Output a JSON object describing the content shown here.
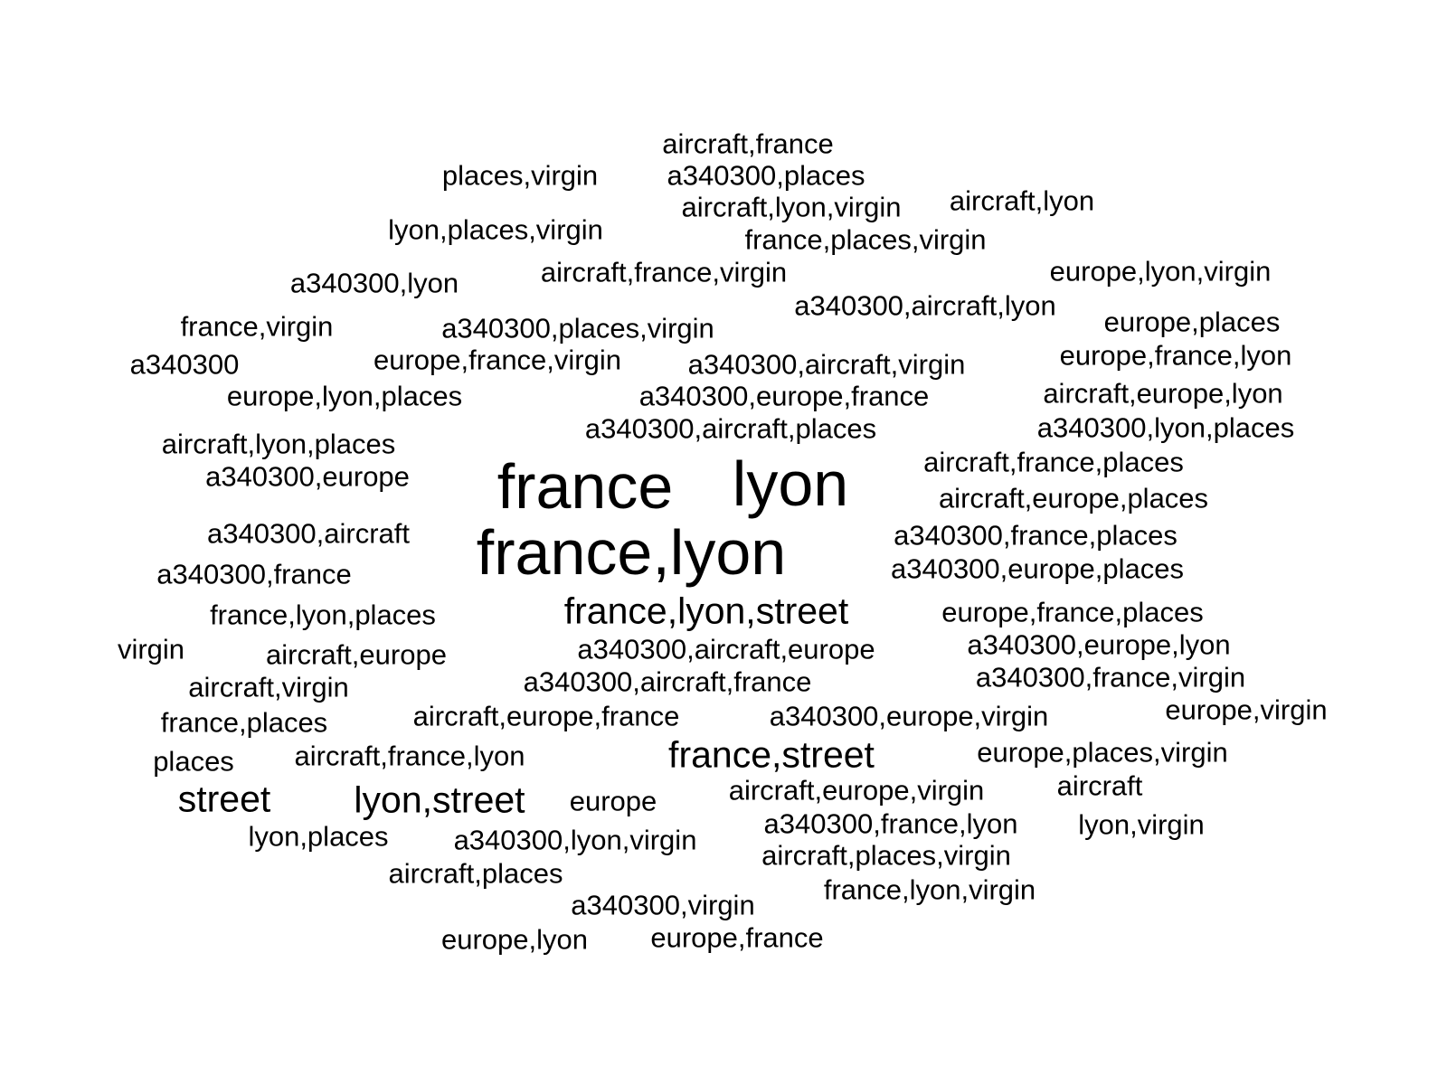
{
  "chart_data": {
    "type": "wordcloud",
    "text_color": "#000000",
    "background": "#ffffff",
    "words": [
      {
        "text": "france",
        "weight": 5
      },
      {
        "text": "lyon",
        "weight": 5
      },
      {
        "text": "france,lyon",
        "weight": 5
      },
      {
        "text": "france,lyon,street",
        "weight": 3
      },
      {
        "text": "france,street",
        "weight": 3
      },
      {
        "text": "street",
        "weight": 3
      },
      {
        "text": "lyon,street",
        "weight": 3
      },
      {
        "text": "aircraft,france",
        "weight": 1
      },
      {
        "text": "places,virgin",
        "weight": 1
      },
      {
        "text": "a340300,places",
        "weight": 1
      },
      {
        "text": "aircraft,lyon,virgin",
        "weight": 1
      },
      {
        "text": "aircraft,lyon",
        "weight": 1
      },
      {
        "text": "lyon,places,virgin",
        "weight": 1
      },
      {
        "text": "france,places,virgin",
        "weight": 1
      },
      {
        "text": "a340300,lyon",
        "weight": 1
      },
      {
        "text": "aircraft,france,virgin",
        "weight": 1
      },
      {
        "text": "europe,lyon,virgin",
        "weight": 1
      },
      {
        "text": "a340300,aircraft,lyon",
        "weight": 1
      },
      {
        "text": "france,virgin",
        "weight": 1
      },
      {
        "text": "a340300,places,virgin",
        "weight": 1
      },
      {
        "text": "europe,places",
        "weight": 1
      },
      {
        "text": "a340300",
        "weight": 1
      },
      {
        "text": "europe,france,virgin",
        "weight": 1
      },
      {
        "text": "a340300,aircraft,virgin",
        "weight": 1
      },
      {
        "text": "europe,france,lyon",
        "weight": 1
      },
      {
        "text": "europe,lyon,places",
        "weight": 1
      },
      {
        "text": "a340300,europe,france",
        "weight": 1
      },
      {
        "text": "aircraft,europe,lyon",
        "weight": 1
      },
      {
        "text": "a340300,aircraft,places",
        "weight": 1
      },
      {
        "text": "a340300,lyon,places",
        "weight": 1
      },
      {
        "text": "aircraft,lyon,places",
        "weight": 1
      },
      {
        "text": "aircraft,france,places",
        "weight": 1
      },
      {
        "text": "a340300,europe",
        "weight": 1
      },
      {
        "text": "aircraft,europe,places",
        "weight": 1
      },
      {
        "text": "a340300,aircraft",
        "weight": 1
      },
      {
        "text": "a340300,france,places",
        "weight": 1
      },
      {
        "text": "a340300,france",
        "weight": 1
      },
      {
        "text": "a340300,europe,places",
        "weight": 1
      },
      {
        "text": "france,lyon,places",
        "weight": 1
      },
      {
        "text": "europe,france,places",
        "weight": 1
      },
      {
        "text": "virgin",
        "weight": 1
      },
      {
        "text": "aircraft,europe",
        "weight": 1
      },
      {
        "text": "a340300,aircraft,europe",
        "weight": 1
      },
      {
        "text": "a340300,europe,lyon",
        "weight": 1
      },
      {
        "text": "aircraft,virgin",
        "weight": 1
      },
      {
        "text": "a340300,aircraft,france",
        "weight": 1
      },
      {
        "text": "a340300,france,virgin",
        "weight": 1
      },
      {
        "text": "france,places",
        "weight": 1
      },
      {
        "text": "aircraft,europe,france",
        "weight": 1
      },
      {
        "text": "a340300,europe,virgin",
        "weight": 1
      },
      {
        "text": "europe,virgin",
        "weight": 1
      },
      {
        "text": "places",
        "weight": 1
      },
      {
        "text": "aircraft,france,lyon",
        "weight": 1
      },
      {
        "text": "europe,places,virgin",
        "weight": 1
      },
      {
        "text": "europe",
        "weight": 1
      },
      {
        "text": "aircraft,europe,virgin",
        "weight": 1
      },
      {
        "text": "aircraft",
        "weight": 1
      },
      {
        "text": "lyon,places",
        "weight": 1
      },
      {
        "text": "a340300,lyon,virgin",
        "weight": 1
      },
      {
        "text": "a340300,france,lyon",
        "weight": 1
      },
      {
        "text": "lyon,virgin",
        "weight": 1
      },
      {
        "text": "aircraft,places",
        "weight": 1
      },
      {
        "text": "aircraft,places,virgin",
        "weight": 1
      },
      {
        "text": "a340300,virgin",
        "weight": 1
      },
      {
        "text": "france,lyon,virgin",
        "weight": 1
      },
      {
        "text": "europe,lyon",
        "weight": 1
      },
      {
        "text": "europe,france",
        "weight": 1
      }
    ]
  }
}
